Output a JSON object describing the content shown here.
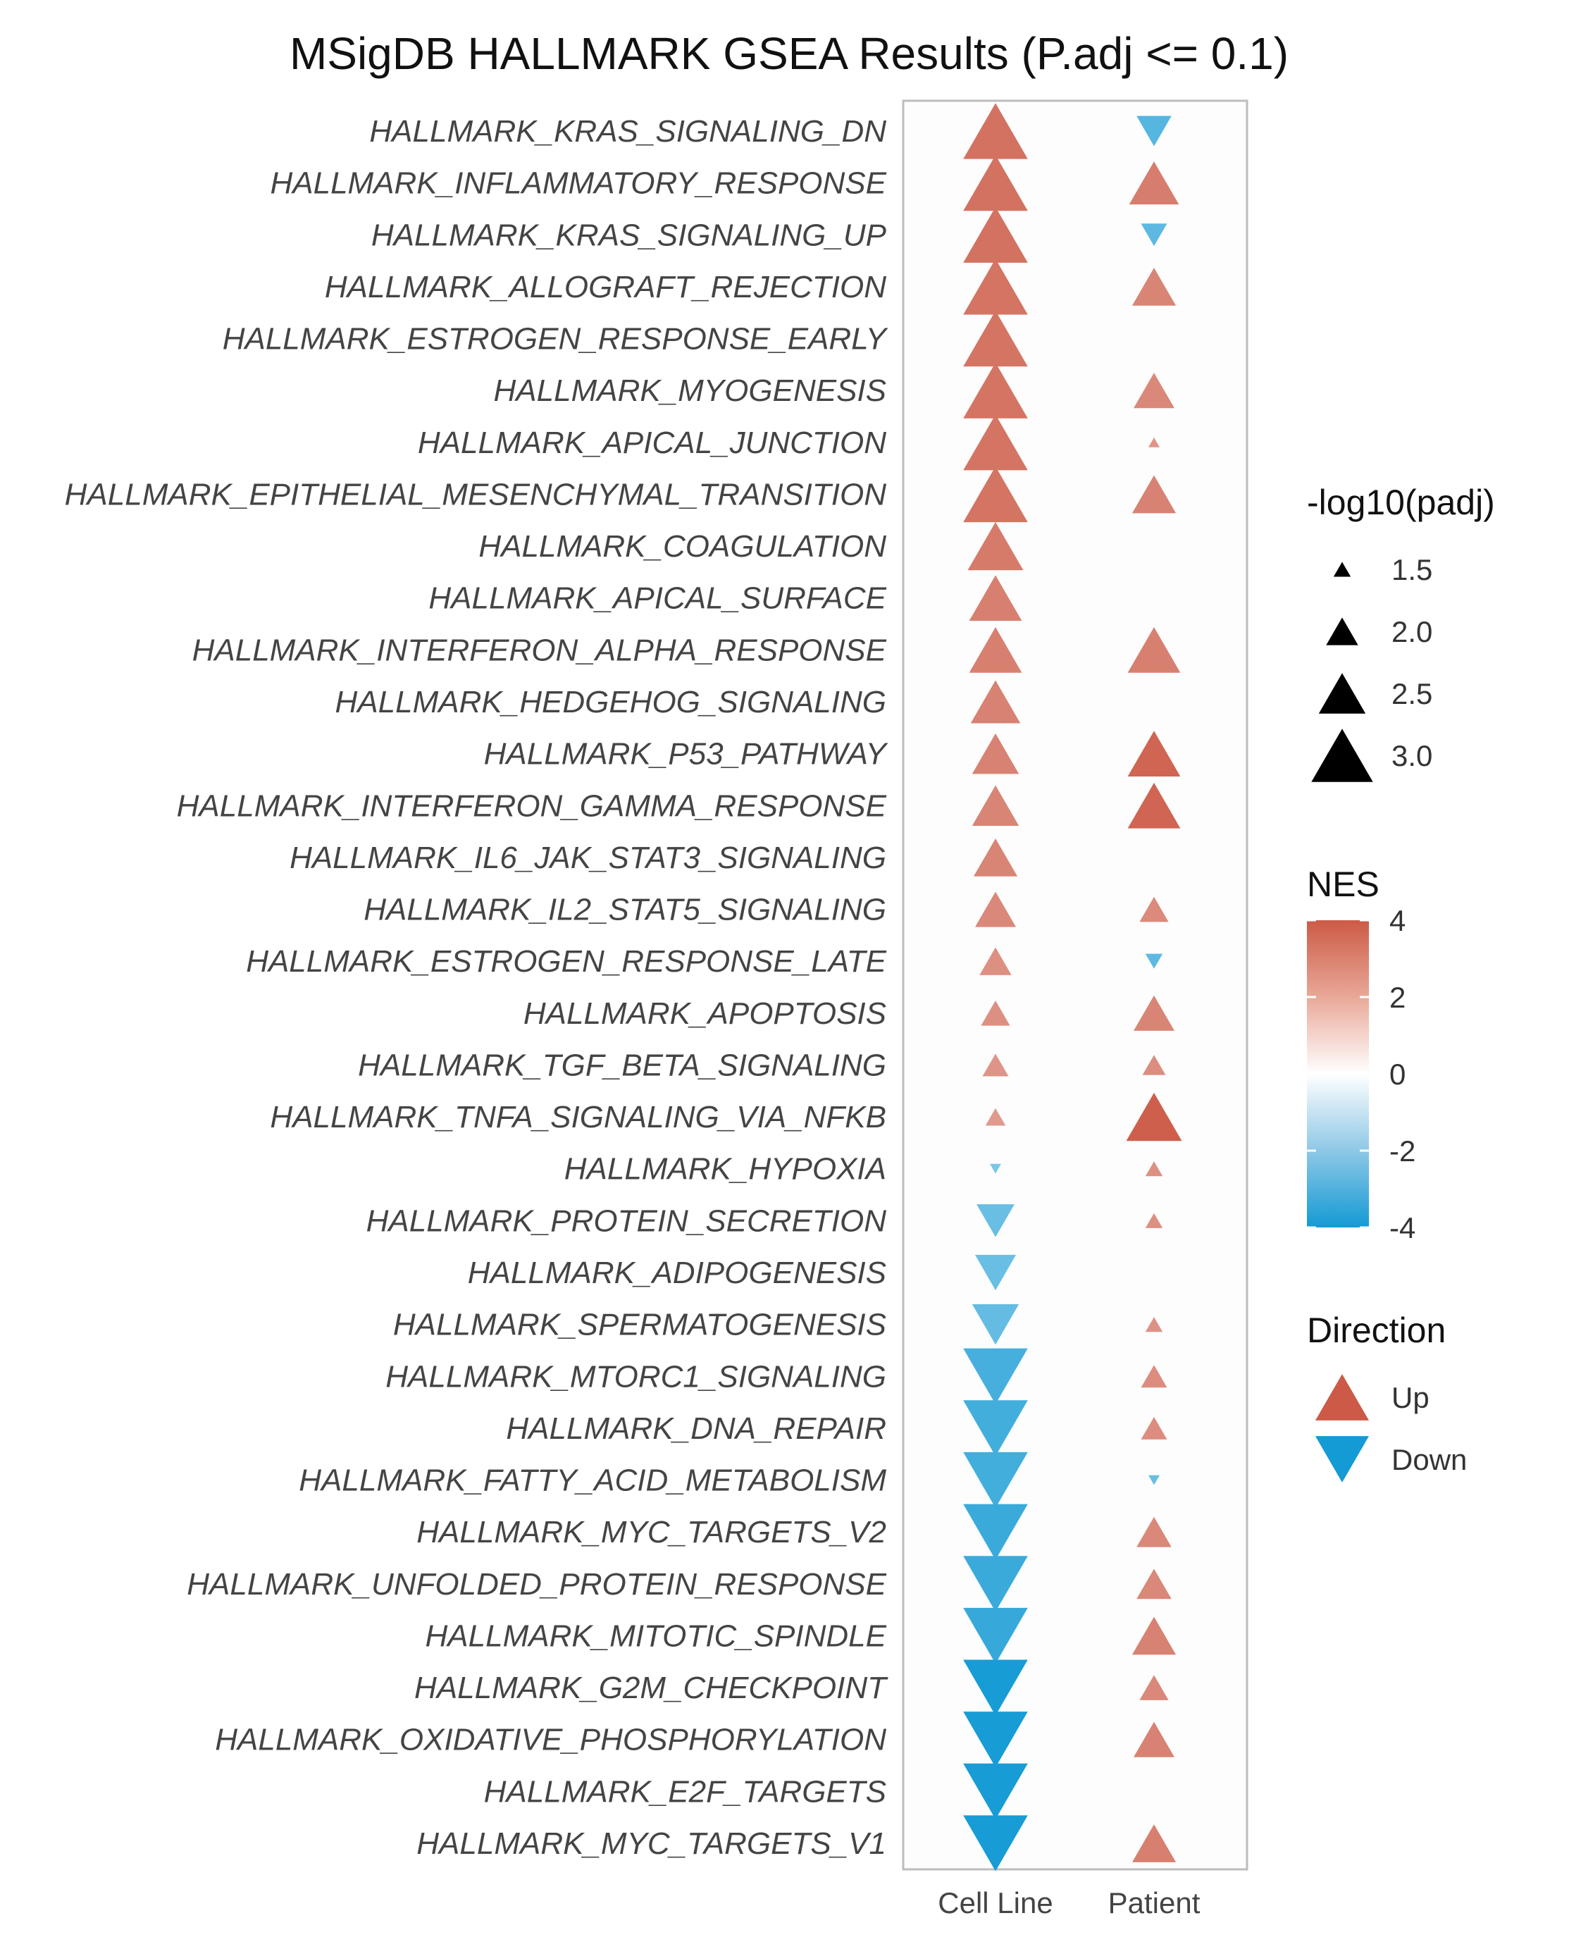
{
  "chart_data": {
    "type": "scatter",
    "title": "MSigDB HALLMARK GSEA Results (P.adj <= 0.1)",
    "columns": [
      "Cell Line",
      "Patient"
    ],
    "pathways": [
      "HALLMARK_KRAS_SIGNALING_DN",
      "HALLMARK_INFLAMMATORY_RESPONSE",
      "HALLMARK_KRAS_SIGNALING_UP",
      "HALLMARK_ALLOGRAFT_REJECTION",
      "HALLMARK_ESTROGEN_RESPONSE_EARLY",
      "HALLMARK_MYOGENESIS",
      "HALLMARK_APICAL_JUNCTION",
      "HALLMARK_EPITHELIAL_MESENCHYMAL_TRANSITION",
      "HALLMARK_COAGULATION",
      "HALLMARK_APICAL_SURFACE",
      "HALLMARK_INTERFERON_ALPHA_RESPONSE",
      "HALLMARK_HEDGEHOG_SIGNALING",
      "HALLMARK_P53_PATHWAY",
      "HALLMARK_INTERFERON_GAMMA_RESPONSE",
      "HALLMARK_IL6_JAK_STAT3_SIGNALING",
      "HALLMARK_IL2_STAT5_SIGNALING",
      "HALLMARK_ESTROGEN_RESPONSE_LATE",
      "HALLMARK_APOPTOSIS",
      "HALLMARK_TGF_BETA_SIGNALING",
      "HALLMARK_TNFA_SIGNALING_VIA_NFKB",
      "HALLMARK_HYPOXIA",
      "HALLMARK_PROTEIN_SECRETION",
      "HALLMARK_ADIPOGENESIS",
      "HALLMARK_SPERMATOGENESIS",
      "HALLMARK_MTORC1_SIGNALING",
      "HALLMARK_DNA_REPAIR",
      "HALLMARK_FATTY_ACID_METABOLISM",
      "HALLMARK_MYC_TARGETS_V2",
      "HALLMARK_UNFOLDED_PROTEIN_RESPONSE",
      "HALLMARK_MITOTIC_SPINDLE",
      "HALLMARK_G2M_CHECKPOINT",
      "HALLMARK_OXIDATIVE_PHOSPHORYLATION",
      "HALLMARK_E2F_TARGETS",
      "HALLMARK_MYC_TARGETS_V1"
    ],
    "series": [
      {
        "name": "Cell Line",
        "nes": [
          3.1,
          3.1,
          3.1,
          3.0,
          3.0,
          3.0,
          3.0,
          3.0,
          2.8,
          2.6,
          2.6,
          2.5,
          2.5,
          2.4,
          2.4,
          2.3,
          2.0,
          2.0,
          1.8,
          1.6,
          -1.3,
          -1.8,
          -1.8,
          -1.9,
          -2.7,
          -2.8,
          -2.8,
          -3.0,
          -3.0,
          -3.1,
          -3.9,
          -3.9,
          -3.9,
          -3.9
        ],
        "neglog10_padj": [
          3.1,
          3.1,
          3.1,
          3.1,
          3.1,
          3.1,
          3.1,
          3.1,
          2.8,
          2.7,
          2.7,
          2.6,
          2.5,
          2.5,
          2.4,
          2.3,
          2.0,
          1.9,
          1.8,
          1.6,
          1.3,
          2.2,
          2.3,
          2.5,
          3.1,
          3.1,
          3.1,
          3.1,
          3.1,
          3.1,
          3.1,
          3.1,
          3.1,
          3.1
        ]
      },
      {
        "name": "Patient",
        "nes": [
          -2.3,
          2.7,
          -2.1,
          2.4,
          null,
          2.3,
          1.8,
          2.5,
          null,
          null,
          2.6,
          null,
          3.6,
          3.6,
          null,
          2.2,
          -2.1,
          2.4,
          2.1,
          3.8,
          2.0,
          2.0,
          null,
          1.9,
          2.1,
          2.1,
          -1.8,
          2.3,
          2.3,
          2.5,
          2.3,
          2.5,
          null,
          2.6
        ],
        "neglog10_padj": [
          2.1,
          2.6,
          1.8,
          2.4,
          null,
          2.3,
          1.3,
          2.4,
          null,
          null,
          2.7,
          null,
          2.7,
          2.7,
          null,
          1.9,
          1.5,
          2.3,
          1.7,
          2.8,
          1.5,
          1.5,
          null,
          1.5,
          1.8,
          1.8,
          1.3,
          2.1,
          2.1,
          2.4,
          1.9,
          2.3,
          null,
          2.4
        ]
      }
    ],
    "legend_size": {
      "title": "-log10(padj)",
      "values": [
        1.5,
        2.0,
        2.5,
        3.0
      ],
      "labels": [
        "1.5",
        "2.0",
        "2.5",
        "3.0"
      ]
    },
    "legend_color": {
      "title": "NES",
      "range": [
        -4,
        4
      ],
      "ticks": [
        4,
        2,
        0,
        -2,
        -4
      ],
      "tick_labels": [
        "4",
        "2",
        "0",
        "-2",
        "-4"
      ],
      "colors": {
        "high": "#cc5a46",
        "mid": "#ffffff",
        "low": "#149ad4"
      }
    },
    "legend_direction": {
      "title": "Direction",
      "items": [
        {
          "label": "Up",
          "color": "#cc5a46"
        },
        {
          "label": "Down",
          "color": "#149ad4"
        }
      ]
    }
  }
}
